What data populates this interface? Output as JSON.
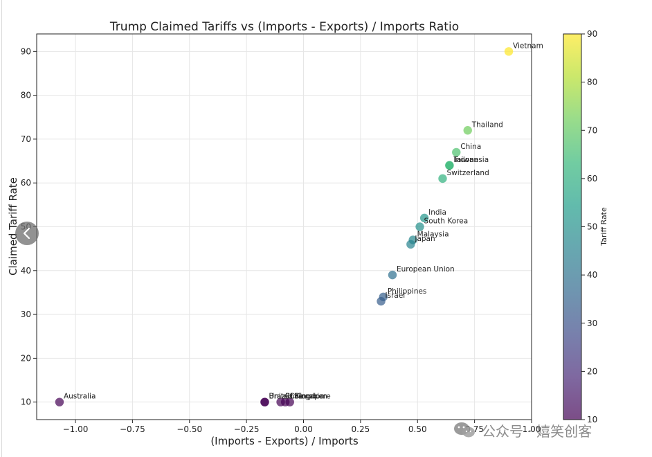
{
  "chart_data": {
    "type": "scatter",
    "title": "Trump Claimed Tariffs vs (Imports - Exports) / Imports Ratio",
    "xlabel": "(Imports - Exports) / Imports",
    "ylabel": "Claimed Tariff Rate",
    "xlim": [
      -1.17,
      1.0
    ],
    "ylim": [
      6,
      94
    ],
    "x_ticks": [
      -1.0,
      -0.75,
      -0.5,
      -0.25,
      0.0,
      0.25,
      0.5,
      0.75,
      1.0
    ],
    "x_tick_labels": [
      "−1.00",
      "−0.75",
      "−0.50",
      "−0.25",
      "0.00",
      "0.25",
      "0.50",
      "0.75",
      "1.00"
    ],
    "y_ticks": [
      10,
      20,
      30,
      40,
      50,
      60,
      70,
      80,
      90
    ],
    "y_tick_labels": [
      "10",
      "20",
      "30",
      "40",
      "50",
      "60",
      "70",
      "80",
      "90"
    ],
    "grid": true,
    "colormap": "viridis",
    "point_alpha": 0.7,
    "colorbar": {
      "label": "Tariff Rate",
      "range": [
        10,
        90
      ],
      "ticks": [
        10,
        20,
        30,
        40,
        50,
        60,
        70,
        80,
        90
      ],
      "tick_labels": [
        "10",
        "20",
        "30",
        "40",
        "50",
        "60",
        "70",
        "80",
        "90"
      ]
    },
    "points": [
      {
        "label": "Vietnam",
        "x": 0.9,
        "y": 90
      },
      {
        "label": "Thailand",
        "x": 0.72,
        "y": 72
      },
      {
        "label": "China",
        "x": 0.67,
        "y": 67
      },
      {
        "label": "Taiwan",
        "x": 0.64,
        "y": 64
      },
      {
        "label": "Indonesia",
        "x": 0.64,
        "y": 64
      },
      {
        "label": "Switzerland",
        "x": 0.61,
        "y": 61
      },
      {
        "label": "India",
        "x": 0.53,
        "y": 52
      },
      {
        "label": "South Korea",
        "x": 0.51,
        "y": 50
      },
      {
        "label": "Malaysia",
        "x": 0.48,
        "y": 47
      },
      {
        "label": "Japan",
        "x": 0.47,
        "y": 46
      },
      {
        "label": "European Union",
        "x": 0.39,
        "y": 39
      },
      {
        "label": "Philippines",
        "x": 0.35,
        "y": 34
      },
      {
        "label": "Israel",
        "x": 0.34,
        "y": 33
      },
      {
        "label": "Australia",
        "x": -1.07,
        "y": 10
      },
      {
        "label": "Brazil",
        "x": -0.17,
        "y": 10
      },
      {
        "label": "United Kingdom",
        "x": -0.17,
        "y": 10
      },
      {
        "label": "Chile",
        "x": -0.1,
        "y": 10
      },
      {
        "label": "Colombia",
        "x": -0.08,
        "y": 10
      },
      {
        "label": "Singapore",
        "x": -0.06,
        "y": 10
      }
    ]
  },
  "watermark": {
    "text": "公众号 · 嬉笑创客"
  },
  "icons": {
    "prev": "chevron-left-icon",
    "watermark": "wechat-icon"
  }
}
